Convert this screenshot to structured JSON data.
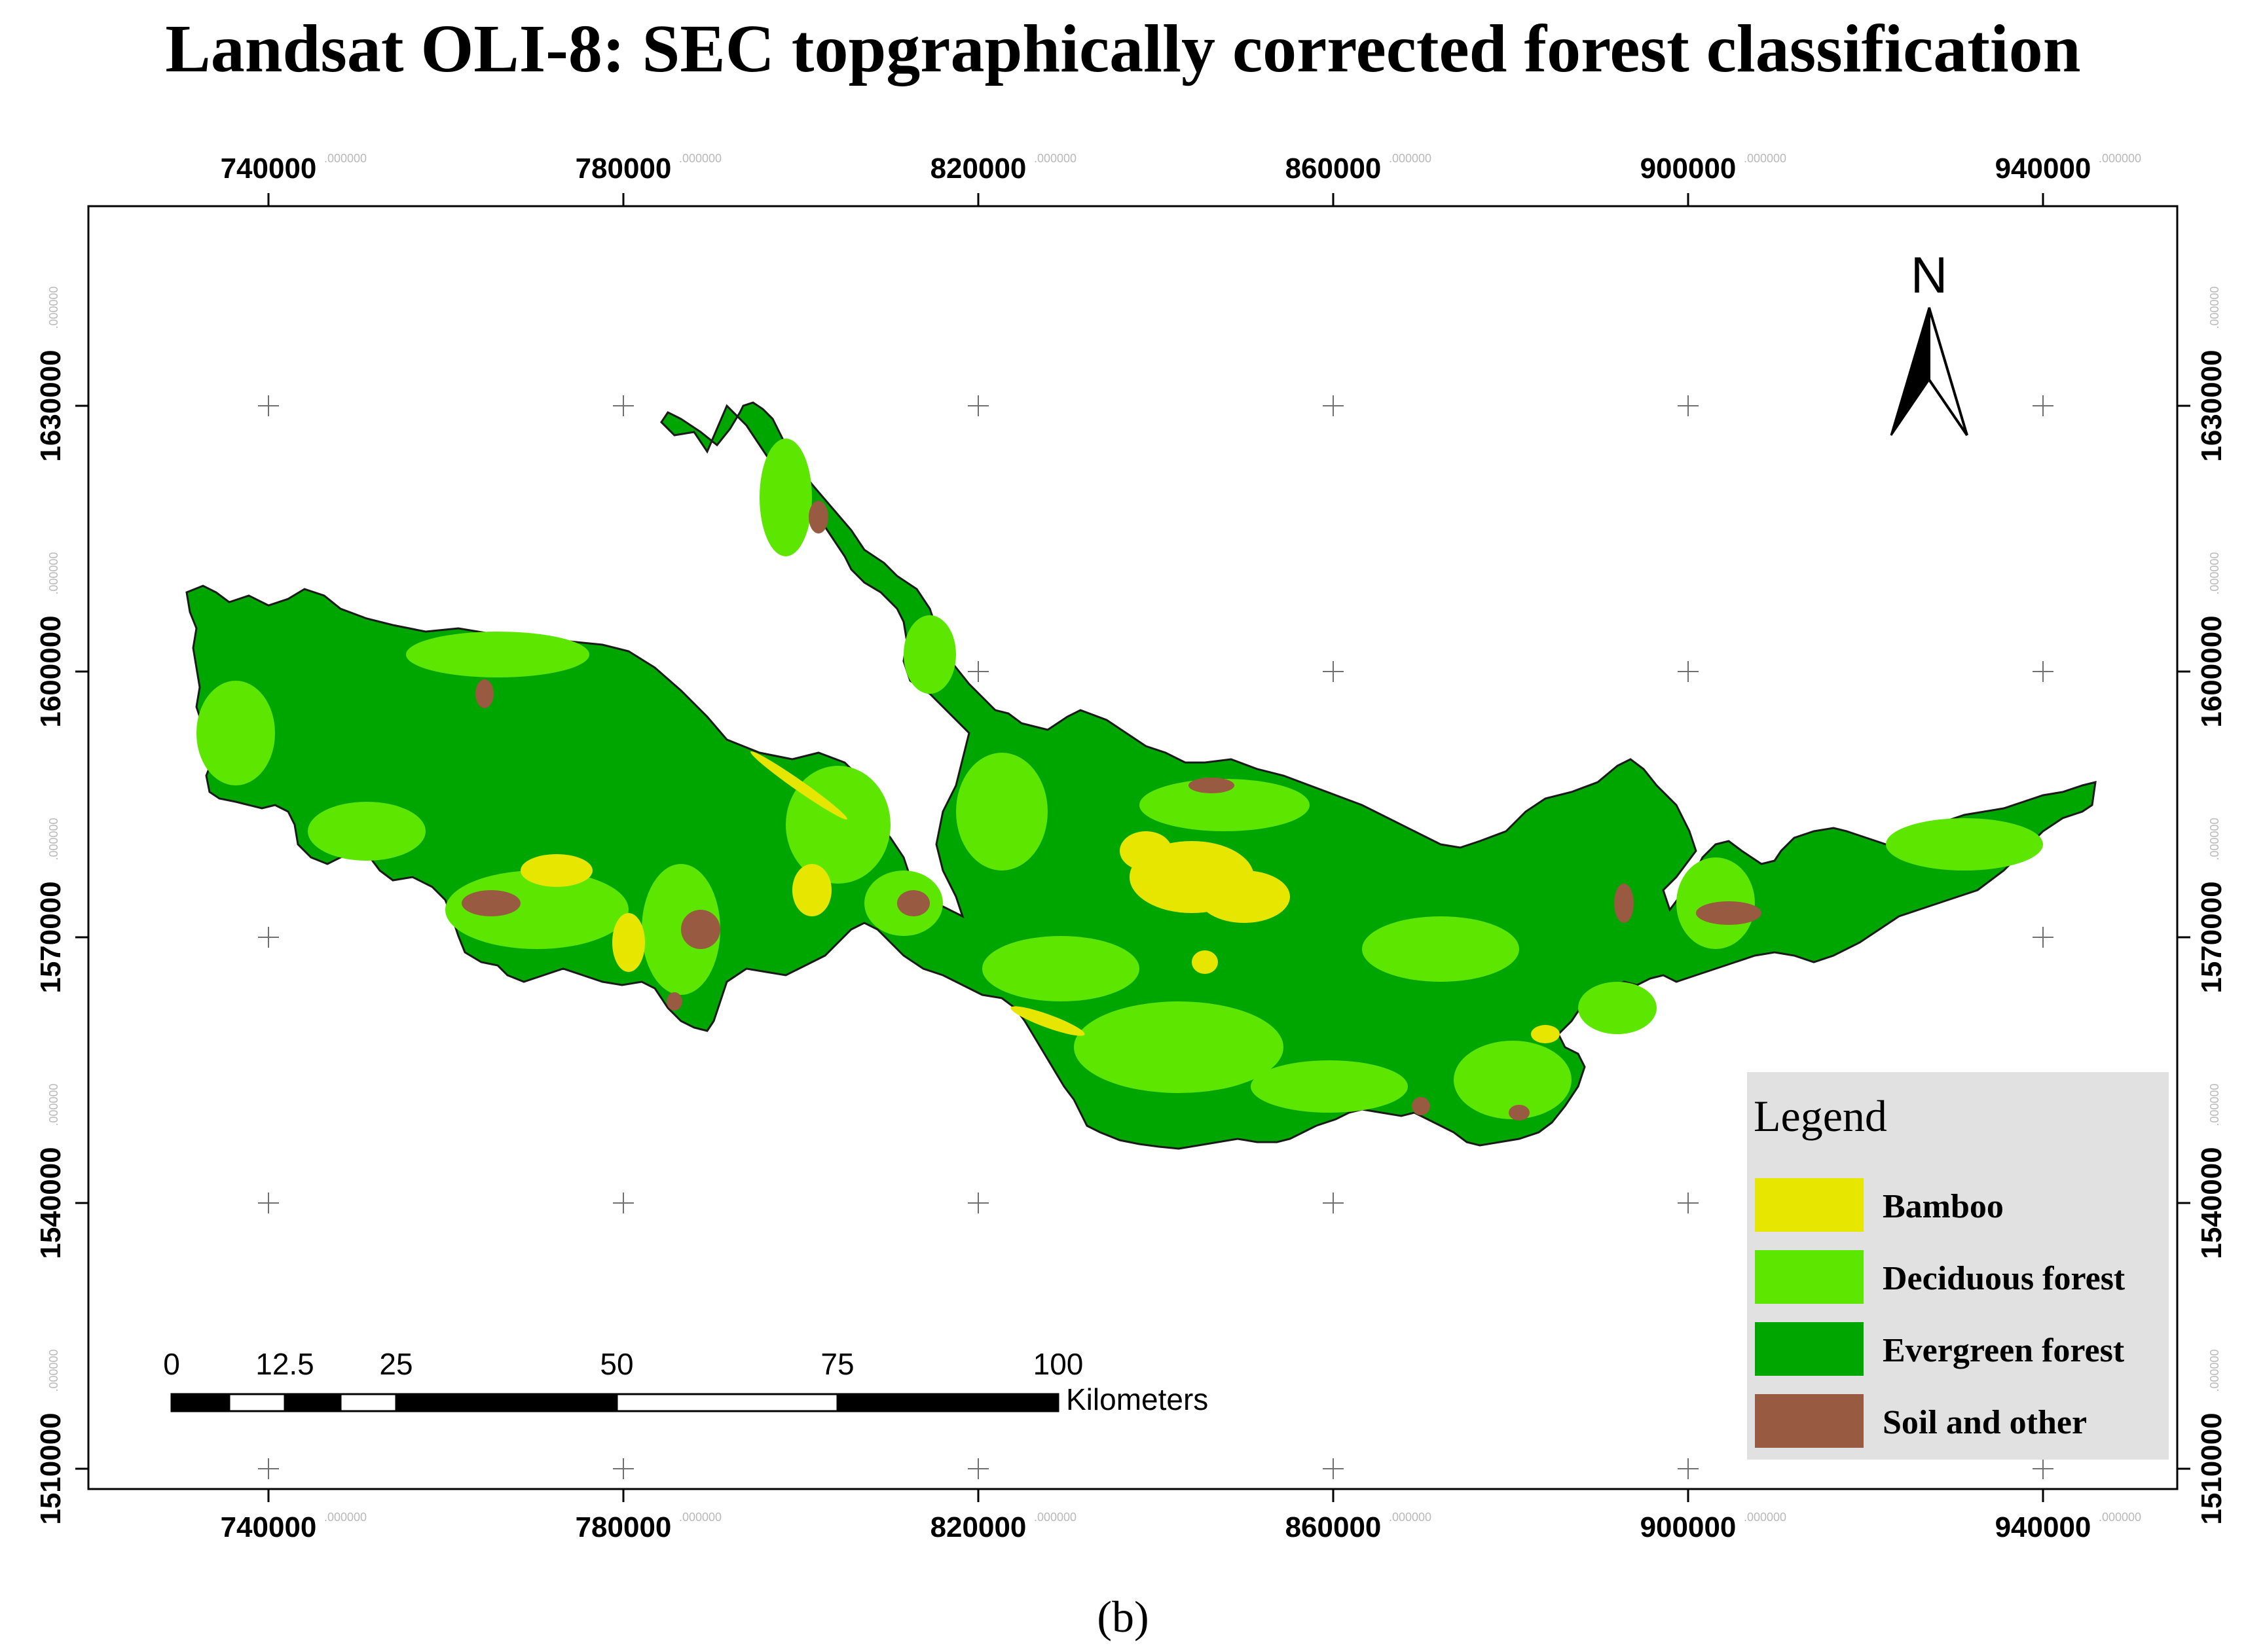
{
  "title": "Landsat OLI-8: SEC topgraphically corrected forest classification",
  "caption": "(b)",
  "map": {
    "x_ticks": [
      "740000",
      "780000",
      "820000",
      "860000",
      "900000",
      "940000"
    ],
    "y_ticks": [
      "1630000",
      "1600000",
      "1570000",
      "1540000",
      "1510000"
    ],
    "tick_decimals": ".000000",
    "north_label": "N",
    "scalebar": {
      "labels": [
        "0",
        "12.5",
        "25",
        "50",
        "75",
        "100"
      ],
      "unit": "Kilometers"
    },
    "legend": {
      "title": "Legend",
      "items": [
        {
          "label": "Bamboo",
          "color": "#E6E600"
        },
        {
          "label": "Deciduous forest",
          "color": "#5CE600"
        },
        {
          "label": "Evergreen forest",
          "color": "#00A600"
        },
        {
          "label": "Soil and other",
          "color": "#985A40"
        }
      ]
    },
    "colors": {
      "bamboo": "#E6E600",
      "deciduous": "#5CE600",
      "evergreen": "#00A600",
      "soil": "#985A40",
      "legend_bg": "#E1E1E1"
    }
  }
}
